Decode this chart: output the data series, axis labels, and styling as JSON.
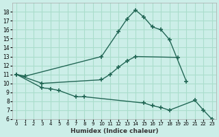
{
  "xlabel": "Humidex (Indice chaleur)",
  "background_color": "#cceee8",
  "grid_color": "#aaddcc",
  "line_color": "#226655",
  "x_values": [
    0,
    1,
    2,
    3,
    4,
    5,
    6,
    7,
    8,
    9,
    10,
    11,
    12,
    13,
    14,
    15,
    16,
    17,
    18,
    19,
    20,
    21,
    22,
    23
  ],
  "y_max": [
    11,
    10.8,
    null,
    null,
    null,
    null,
    null,
    null,
    null,
    null,
    13.0,
    null,
    15.8,
    17.2,
    18.2,
    17.4,
    16.3,
    16.0,
    14.9,
    null,
    10.2,
    null,
    null,
    null
  ],
  "y_mean": [
    11,
    null,
    null,
    10.0,
    null,
    null,
    null,
    null,
    null,
    null,
    10.4,
    11.0,
    11.8,
    12.5,
    13.0,
    null,
    null,
    null,
    null,
    12.9,
    null,
    null,
    null,
    null
  ],
  "y_min": [
    11,
    null,
    null,
    9.5,
    9.4,
    9.2,
    null,
    8.5,
    8.5,
    null,
    null,
    null,
    null,
    null,
    null,
    7.8,
    7.5,
    7.3,
    7.0,
    null,
    null,
    8.1,
    7.0,
    6.0
  ],
  "ylim": [
    6,
    19
  ],
  "xlim": [
    -0.5,
    23.5
  ],
  "yticks": [
    6,
    7,
    8,
    9,
    10,
    11,
    12,
    13,
    14,
    15,
    16,
    17,
    18
  ],
  "xticks": [
    0,
    1,
    2,
    3,
    4,
    5,
    6,
    7,
    8,
    9,
    10,
    11,
    12,
    13,
    14,
    15,
    16,
    17,
    18,
    19,
    20,
    21,
    22,
    23
  ]
}
